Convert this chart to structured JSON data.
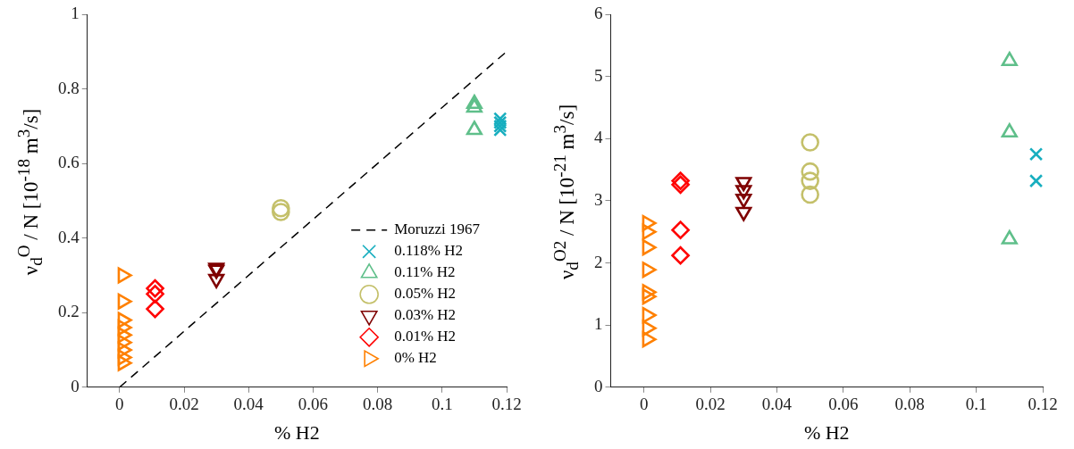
{
  "chart_data": [
    {
      "type": "scatter",
      "xlabel": "% H2",
      "ylabel": "ν$_{d}$$^{O}$ / N  [10$^{-18}$ m$^{3}$/s]",
      "xlim": [
        -0.01,
        0.12
      ],
      "xticks": [
        0,
        0.02,
        0.04,
        0.06,
        0.08,
        0.1,
        0.12
      ],
      "ylim": [
        0,
        1
      ],
      "yticks": [
        0,
        0.2,
        0.4,
        0.6,
        0.8,
        1
      ],
      "grid": false,
      "legend": "bottom right",
      "series": [
        {
          "name": "Moruzzi 1967",
          "type": "line",
          "line_style": "dashed",
          "marker": "none",
          "color": "#000000",
          "x": [
            0,
            0.12
          ],
          "values": [
            0,
            0.9
          ]
        },
        {
          "name": "0.118% H2",
          "marker": "cross",
          "color": "#17aebf",
          "x": [
            0.118,
            0.118,
            0.118,
            0.118
          ],
          "values": [
            0.72,
            0.71,
            0.7,
            0.69
          ]
        },
        {
          "name": "0.11% H2",
          "marker": "triangle",
          "color": "#5fbf8a",
          "x": [
            0.11,
            0.11,
            0.11
          ],
          "values": [
            0.76,
            0.75,
            0.69
          ]
        },
        {
          "name": "0.05% H2",
          "marker": "circle",
          "color": "#c4c06a",
          "x": [
            0.05,
            0.05
          ],
          "values": [
            0.48,
            0.47
          ]
        },
        {
          "name": "0.03% H2",
          "marker": "triangle-down",
          "color": "#7f0000",
          "x": [
            0.03,
            0.03,
            0.03
          ],
          "values": [
            0.32,
            0.315,
            0.29
          ]
        },
        {
          "name": "0.01% H2",
          "marker": "diamond",
          "color": "#ff0000",
          "x": [
            0.011,
            0.011,
            0.011
          ],
          "values": [
            0.265,
            0.25,
            0.21
          ]
        },
        {
          "name": "0% H2",
          "marker": "triangle-right",
          "color": "#ff8000",
          "x": [
            0.001,
            0.001,
            0.001,
            0.001,
            0.001,
            0.001,
            0.001,
            0.001,
            0.001
          ],
          "values": [
            0.3,
            0.23,
            0.18,
            0.16,
            0.14,
            0.12,
            0.1,
            0.08,
            0.065
          ]
        }
      ]
    },
    {
      "type": "scatter",
      "xlabel": "% H2",
      "ylabel": "ν$_{d}$$^{O2}$ / N  [10$^{-21}$ m$^{3}$/s]",
      "xlim": [
        -0.01,
        0.12
      ],
      "xticks": [
        0,
        0.02,
        0.04,
        0.06,
        0.08,
        0.1,
        0.12
      ],
      "ylim": [
        0,
        6
      ],
      "yticks": [
        0,
        1,
        2,
        3,
        4,
        5,
        6
      ],
      "grid": false,
      "legend": false,
      "series": [
        {
          "marker": "cross",
          "color": "#17aebf",
          "x": [
            0.118,
            0.118
          ],
          "values": [
            3.75,
            3.32
          ]
        },
        {
          "marker": "triangle",
          "color": "#5fbf8a",
          "x": [
            0.11,
            0.11,
            0.11
          ],
          "values": [
            5.25,
            4.1,
            2.38
          ]
        },
        {
          "marker": "circle",
          "color": "#c4c06a",
          "x": [
            0.05,
            0.05,
            0.05,
            0.05
          ],
          "values": [
            3.94,
            3.47,
            3.32,
            3.1
          ]
        },
        {
          "marker": "triangle-down",
          "color": "#7f0000",
          "x": [
            0.03,
            0.03,
            0.03,
            0.03
          ],
          "values": [
            3.3,
            3.17,
            3.03,
            2.82
          ]
        },
        {
          "marker": "diamond",
          "color": "#ff0000",
          "x": [
            0.011,
            0.011,
            0.011,
            0.011
          ],
          "values": [
            3.32,
            3.26,
            2.53,
            2.12
          ]
        },
        {
          "marker": "triangle-right",
          "color": "#ff8000",
          "x": [
            0.001,
            0.001,
            0.001,
            0.001,
            0.001,
            0.001,
            0.001,
            0.001,
            0.001
          ],
          "values": [
            2.64,
            2.5,
            2.25,
            1.89,
            1.53,
            1.46,
            1.16,
            0.95,
            0.77
          ]
        }
      ]
    }
  ]
}
